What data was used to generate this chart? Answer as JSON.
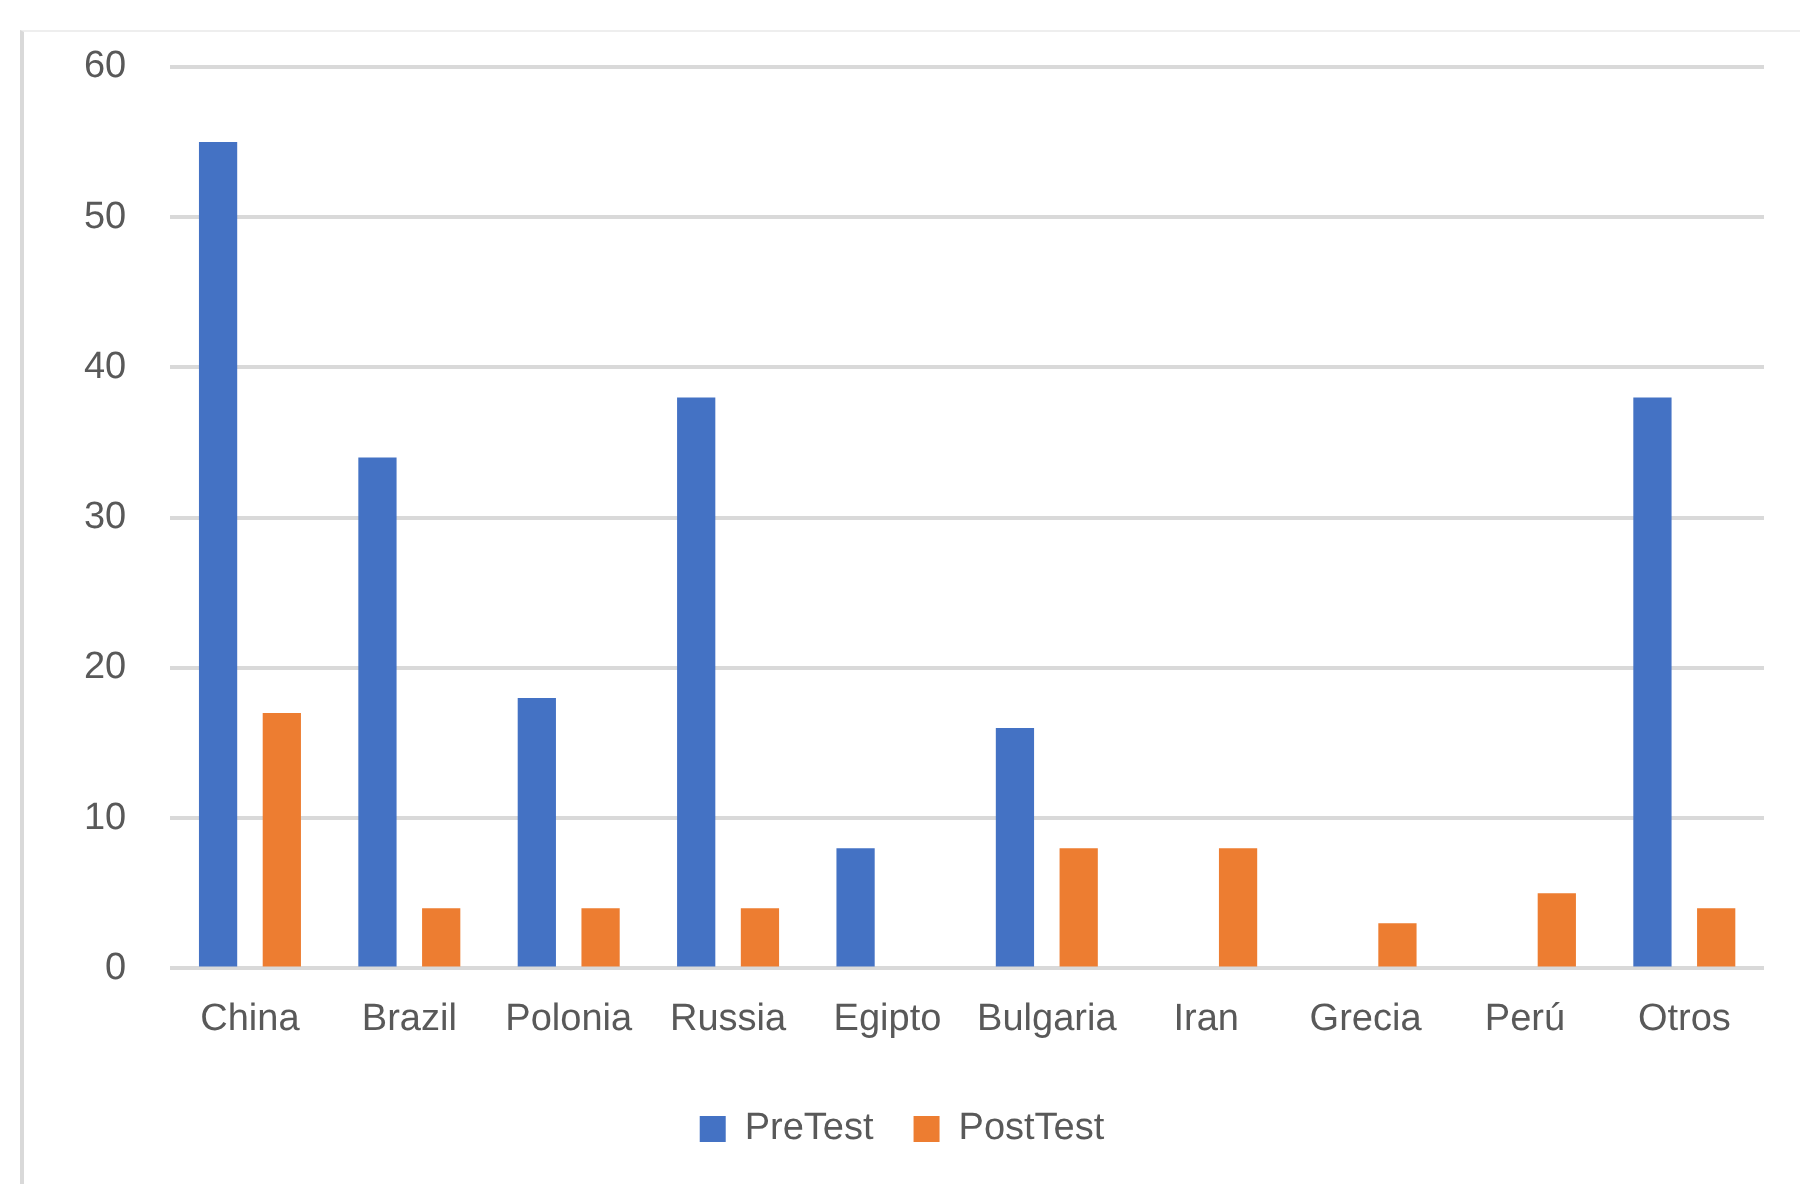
{
  "chart_data": {
    "type": "bar",
    "categories": [
      "China",
      "Brazil",
      "Polonia",
      "Russia",
      "Egipto",
      "Bulgaria",
      "Iran",
      "Grecia",
      "Perú",
      "Otros"
    ],
    "series": [
      {
        "name": "PreTest",
        "color": "#4472c4",
        "values": [
          55,
          34,
          18,
          38,
          8,
          16,
          null,
          null,
          null,
          38
        ]
      },
      {
        "name": "PostTest",
        "color": "#ed7d31",
        "values": [
          17,
          4,
          4,
          4,
          null,
          8,
          8,
          3,
          5,
          4
        ]
      }
    ],
    "ylim": [
      0,
      60
    ],
    "yticks": [
      0,
      10,
      20,
      30,
      40,
      50,
      60
    ],
    "grid": "y",
    "legend": "bottom"
  }
}
